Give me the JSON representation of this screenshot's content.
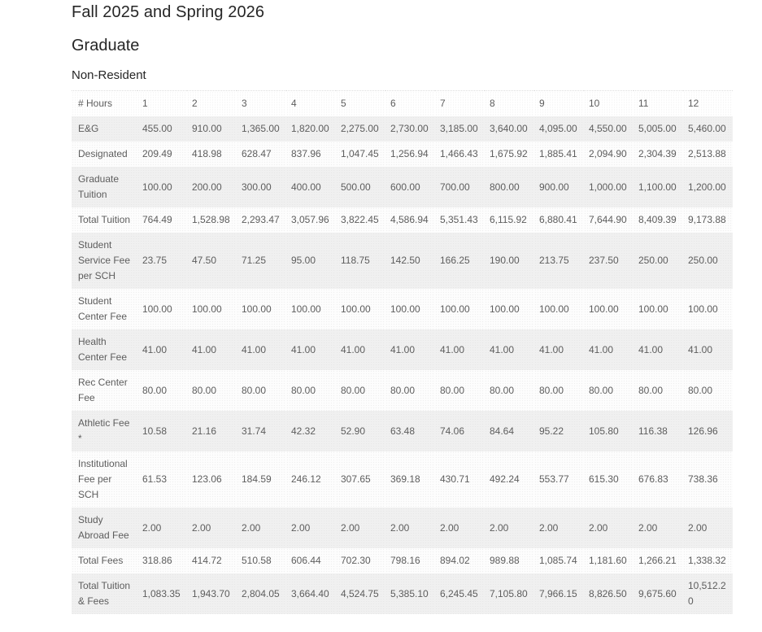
{
  "page": {
    "title": "Fall 2025 and Spring 2026",
    "subtitle": "Graduate",
    "section": "Non-Resident"
  },
  "colors": {
    "stripe_gray": "#f0f0f0",
    "stripe_white": "#fdfdfd",
    "body_text": "#5d5d5d",
    "heading_text": "#262626"
  },
  "table": {
    "header": [
      "# Hours",
      "1",
      "2",
      "3",
      "4",
      "5",
      "6",
      "7",
      "8",
      "9",
      "10",
      "11",
      "12"
    ],
    "rows": [
      {
        "label": "E&G",
        "values": [
          "455.00",
          "910.00",
          "1,365.00",
          "1,820.00",
          "2,275.00",
          "2,730.00",
          "3,185.00",
          "3,640.00",
          "4,095.00",
          "4,550.00",
          "5,005.00",
          "5,460.00"
        ]
      },
      {
        "label": "Designated",
        "values": [
          "209.49",
          "418.98",
          "628.47",
          "837.96",
          "1,047.45",
          "1,256.94",
          "1,466.43",
          "1,675.92",
          "1,885.41",
          "2,094.90",
          "2,304.39",
          "2,513.88"
        ]
      },
      {
        "label": "Graduate Tuition",
        "values": [
          "100.00",
          "200.00",
          "300.00",
          "400.00",
          "500.00",
          "600.00",
          "700.00",
          "800.00",
          "900.00",
          "1,000.00",
          "1,100.00",
          "1,200.00"
        ]
      },
      {
        "label": "Total Tuition",
        "values": [
          "764.49",
          "1,528.98",
          "2,293.47",
          "3,057.96",
          "3,822.45",
          "4,586.94",
          "5,351.43",
          "6,115.92",
          "6,880.41",
          "7,644.90",
          "8,409.39",
          "9,173.88"
        ]
      },
      {
        "label": "Student Service Fee per SCH",
        "values": [
          "23.75",
          "47.50",
          "71.25",
          "95.00",
          "118.75",
          "142.50",
          "166.25",
          "190.00",
          "213.75",
          "237.50",
          "250.00",
          "250.00"
        ]
      },
      {
        "label": "Student Center Fee",
        "values": [
          "100.00",
          "100.00",
          "100.00",
          "100.00",
          "100.00",
          "100.00",
          "100.00",
          "100.00",
          "100.00",
          "100.00",
          "100.00",
          "100.00"
        ]
      },
      {
        "label": "Health Center Fee",
        "values": [
          "41.00",
          "41.00",
          "41.00",
          "41.00",
          "41.00",
          "41.00",
          "41.00",
          "41.00",
          "41.00",
          "41.00",
          "41.00",
          "41.00"
        ]
      },
      {
        "label": "Rec Center Fee",
        "values": [
          "80.00",
          "80.00",
          "80.00",
          "80.00",
          "80.00",
          "80.00",
          "80.00",
          "80.00",
          "80.00",
          "80.00",
          "80.00",
          "80.00"
        ]
      },
      {
        "label": "Athletic Fee *",
        "values": [
          "10.58",
          "21.16",
          "31.74",
          "42.32",
          "52.90",
          "63.48",
          "74.06",
          "84.64",
          "95.22",
          "105.80",
          "116.38",
          "126.96"
        ]
      },
      {
        "label": "Institutional Fee per SCH",
        "values": [
          "61.53",
          "123.06",
          "184.59",
          "246.12",
          "307.65",
          "369.18",
          "430.71",
          "492.24",
          "553.77",
          "615.30",
          "676.83",
          "738.36"
        ]
      },
      {
        "label": "Study Abroad Fee",
        "values": [
          "2.00",
          "2.00",
          "2.00",
          "2.00",
          "2.00",
          "2.00",
          "2.00",
          "2.00",
          "2.00",
          "2.00",
          "2.00",
          "2.00"
        ]
      },
      {
        "label": "Total Fees",
        "values": [
          "318.86",
          "414.72",
          "510.58",
          "606.44",
          "702.30",
          "798.16",
          "894.02",
          "989.88",
          "1,085.74",
          "1,181.60",
          "1,266.21",
          "1,338.32"
        ]
      },
      {
        "label": "Total Tuition & Fees",
        "values": [
          "1,083.35",
          "1,943.70",
          "2,804.05",
          "3,664.40",
          "4,524.75",
          "5,385.10",
          "6,245.45",
          "7,105.80",
          "7,966.15",
          "8,826.50",
          "9,675.60",
          "10,512.20"
        ]
      }
    ]
  }
}
